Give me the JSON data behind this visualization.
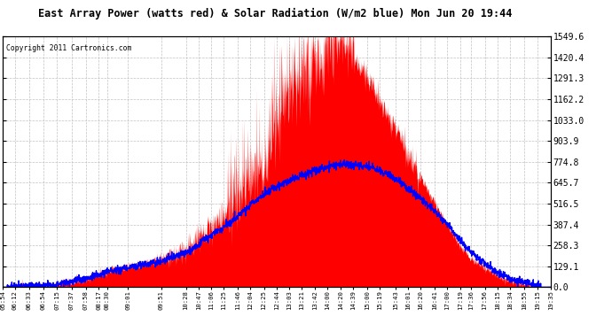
{
  "title": "East Array Power (watts red) & Solar Radiation (W/m2 blue) Mon Jun 20 19:44",
  "copyright": "Copyright 2011 Cartronics.com",
  "bg_color": "#ffffff",
  "plot_bg_color": "#ffffff",
  "grid_color": "#aaaaaa",
  "ymin": 0.0,
  "ymax": 1549.6,
  "yticks": [
    0.0,
    129.1,
    258.3,
    387.4,
    516.5,
    645.7,
    774.8,
    903.9,
    1033.0,
    1162.2,
    1291.3,
    1420.4,
    1549.6
  ],
  "xtick_labels": [
    "05:54",
    "06:12",
    "06:33",
    "06:54",
    "07:15",
    "07:37",
    "07:58",
    "08:17",
    "08:30",
    "09:01",
    "09:51",
    "10:28",
    "10:47",
    "11:06",
    "11:25",
    "11:46",
    "12:04",
    "12:25",
    "12:44",
    "13:03",
    "13:21",
    "13:42",
    "14:00",
    "14:20",
    "14:39",
    "15:00",
    "15:19",
    "15:43",
    "16:01",
    "16:20",
    "16:41",
    "17:00",
    "17:19",
    "17:36",
    "17:56",
    "18:15",
    "18:34",
    "18:55",
    "19:15",
    "19:35"
  ],
  "power_color": "#ff0000",
  "radiation_color": "#0000ff",
  "power_base": [
    5,
    8,
    10,
    15,
    20,
    35,
    55,
    80,
    100,
    130,
    180,
    240,
    310,
    380,
    440,
    580,
    650,
    720,
    980,
    1200,
    1280,
    1380,
    1480,
    1549,
    1420,
    1300,
    1150,
    980,
    820,
    680,
    520,
    380,
    260,
    175,
    120,
    75,
    45,
    25,
    10,
    5
  ],
  "radiation_base": [
    3,
    5,
    8,
    12,
    18,
    35,
    55,
    75,
    95,
    120,
    160,
    210,
    265,
    320,
    370,
    440,
    510,
    570,
    620,
    660,
    690,
    720,
    745,
    760,
    755,
    745,
    720,
    670,
    610,
    550,
    470,
    385,
    295,
    215,
    150,
    95,
    55,
    28,
    10,
    3
  ],
  "power_seed": 17,
  "radiation_seed": 99
}
